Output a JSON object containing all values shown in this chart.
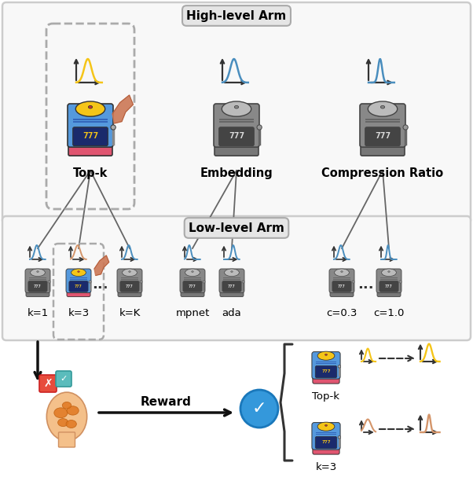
{
  "bg_color": "#ffffff",
  "high_level_label": "High-level Arm",
  "low_level_label": "Low-level Arm",
  "arm_labels": [
    "Top-k",
    "Embedding",
    "Compression Ratio"
  ],
  "low_labels_topk": [
    "k=1",
    "k=3",
    "k=K"
  ],
  "low_labels_embed": [
    "mpnet",
    "ada"
  ],
  "low_labels_comp": [
    "c=0.3",
    "c=1.0"
  ],
  "reward_label": "Reward",
  "topk_label": "Top-k",
  "k3_label": "k=3",
  "colors": {
    "curve_blue": "#4A8EBE",
    "curve_yellow": "#F5C518",
    "curve_peach": "#D4956A",
    "curve_gray": "#AAAAAA",
    "arrow_dark": "#222222",
    "box_border": "#BBBBBB",
    "box_bg": "#F7F7F7",
    "dashed_box": "#AAAAAA",
    "check_blue": "#3498DB",
    "x_red": "#E74C3C",
    "tick_teal": "#5BBCBC",
    "brain_skin": "#F4C08A",
    "brain_fill": "#E07820",
    "slot_yellow_top": "#F5C518",
    "slot_blue_body": "#5599DD",
    "slot_red_base": "#E05570",
    "slot_gray_body": "#999999",
    "slot_gray_base": "#777777",
    "slot_gray_top": "#BBBBBB",
    "hand_color": "#CC7755"
  }
}
